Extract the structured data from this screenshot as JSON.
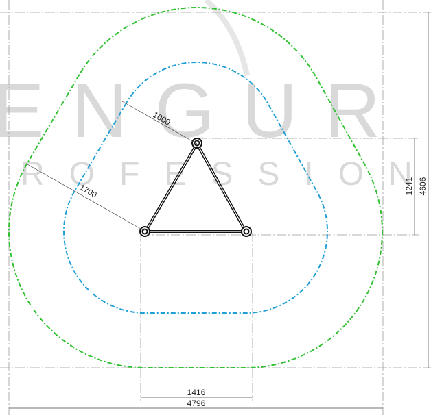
{
  "watermark": {
    "line1": "ENGUR",
    "line2": "PROFESSION"
  },
  "dimensions": {
    "offset_inner": "1000",
    "offset_outer": "1700",
    "height_triangle": "1241",
    "height_total": "4606",
    "width_triangle": "1416",
    "width_total": "4796"
  }
}
